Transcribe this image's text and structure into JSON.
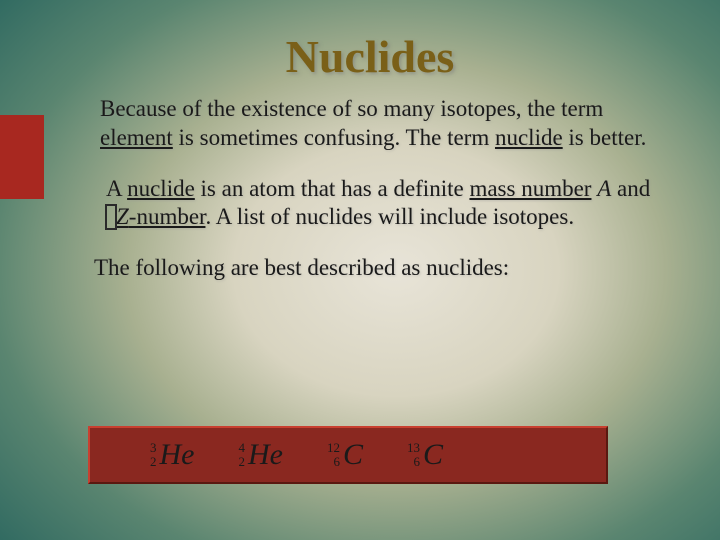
{
  "slide": {
    "title": "Nuclides",
    "para1_a": "Because of the existence of so many isotopes, the term ",
    "para1_u1": "element",
    "para1_b": " is sometimes confusing.  The term ",
    "para1_u2": "nuclide",
    "para1_c": " is better.",
    "para2_a": "A ",
    "para2_u1": "nuclide",
    "para2_b": " is an atom that has a definite ",
    "para2_u2": "mass number",
    "para2_c": " ",
    "para2_i1": "A",
    "para2_d": " and ",
    "para2_i2": "Z",
    "para2_u3": "-number",
    "para2_e": ".  A list of nuclides will include isotopes.",
    "para3": "The following are best described as nuclides:"
  },
  "nuclides": [
    {
      "mass": "3",
      "z": "2",
      "symbol": "He"
    },
    {
      "mass": "4",
      "z": "2",
      "symbol": "He"
    },
    {
      "mass": "12",
      "z": "6",
      "symbol": "C"
    },
    {
      "mass": "13",
      "z": "6",
      "symbol": "C"
    }
  ],
  "style": {
    "accent_color": "#a82820",
    "strip_color": "#8a2820",
    "title_color": "#7a6018",
    "bg_center": "#e8e4d8",
    "bg_edge": "#164348"
  }
}
